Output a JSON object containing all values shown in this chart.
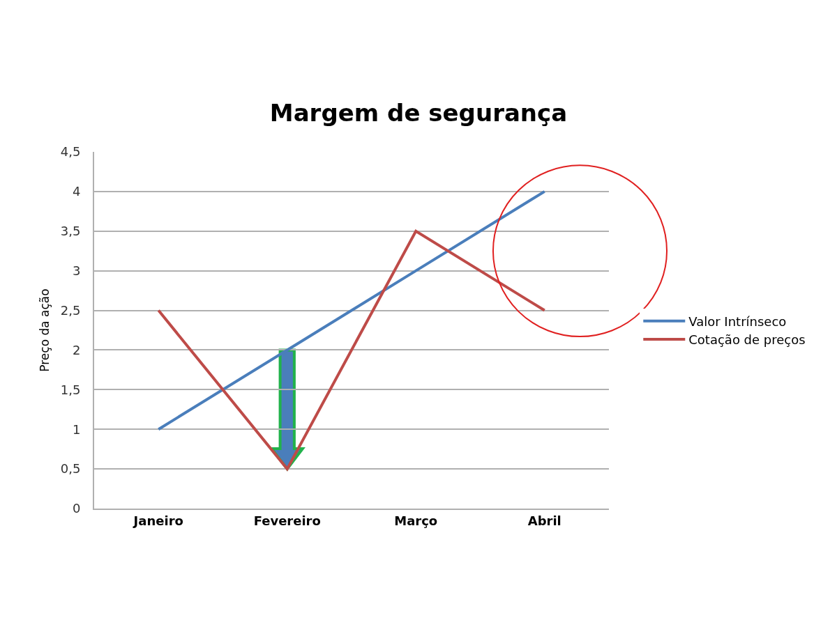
{
  "chart_data": {
    "type": "line",
    "title": "Margem de segurança",
    "ylabel": "Preço da ação",
    "categories": [
      "Janeiro",
      "Fevereiro",
      "Março",
      "Abril"
    ],
    "series": [
      {
        "name": "Valor Intrínseco",
        "color": "#4a7ebb",
        "values": [
          1,
          2,
          3,
          4
        ]
      },
      {
        "name": "Cotação de preços",
        "color": "#be4b48",
        "values": [
          2.5,
          0.5,
          3.5,
          2.5
        ]
      }
    ],
    "ylim": [
      0,
      4.5
    ],
    "yticks": [
      0,
      {
        "value": 0.5,
        "label": "0,5"
      },
      1,
      {
        "value": 1.5,
        "label": "1,5"
      },
      2,
      {
        "value": 2.5,
        "label": "2,5"
      },
      3,
      {
        "value": 3.5,
        "label": "3,5"
      },
      4,
      {
        "value": 4.5,
        "label": "4,5"
      }
    ],
    "grid": "y",
    "legend": "right",
    "marker": "none",
    "line_style": "solid"
  }
}
